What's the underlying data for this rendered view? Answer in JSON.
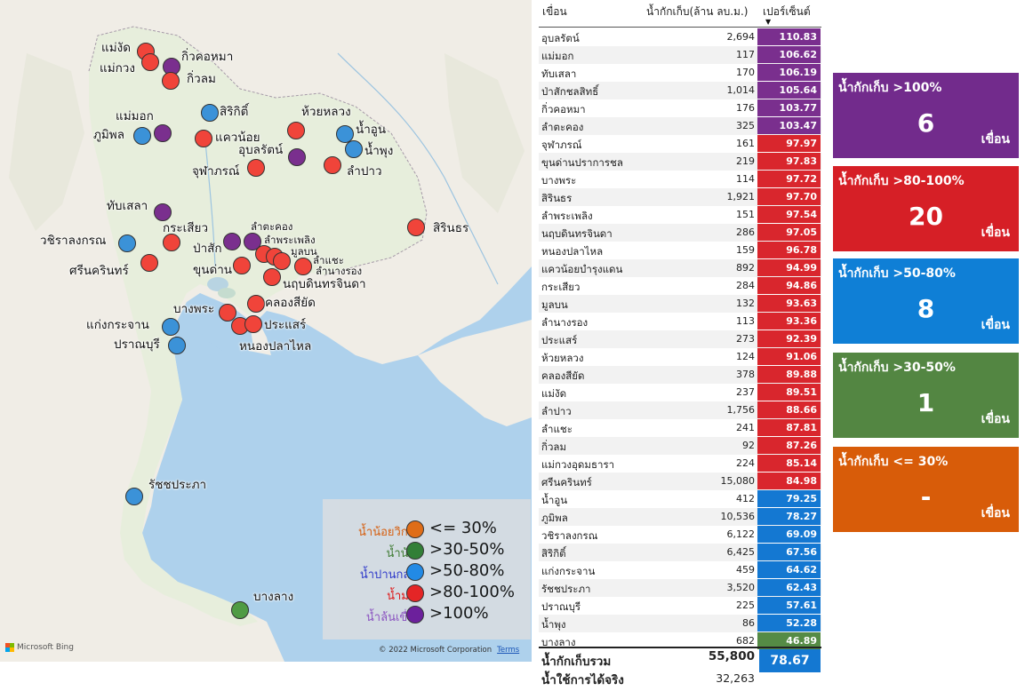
{
  "map": {
    "dams": [
      {
        "label": "แม่งัด",
        "color": "red"
      },
      {
        "label": "แม่กวง",
        "color": "red"
      },
      {
        "label": "กิ่วคอหมา",
        "color": "purple"
      },
      {
        "label": "กิ่วลม",
        "color": "red"
      },
      {
        "label": "สิริกิติ์",
        "color": "blue"
      },
      {
        "label": "ห้วยหลวง",
        "color": "red"
      },
      {
        "label": "แม่มอก",
        "color": "purple"
      },
      {
        "label": "ภูมิพล",
        "color": "blue"
      },
      {
        "label": "แควน้อย",
        "color": "red"
      },
      {
        "label": "น้ำอูน",
        "color": "blue"
      },
      {
        "label": "น้ำพุง",
        "color": "blue"
      },
      {
        "label": "อุบลรัตน์",
        "color": "purple"
      },
      {
        "label": "จุฬาภรณ์",
        "color": "red"
      },
      {
        "label": "ลำปาว",
        "color": "red"
      },
      {
        "label": "ทับเสลา",
        "color": "purple"
      },
      {
        "label": "สิรินธร",
        "color": "red"
      },
      {
        "label": "กระเสียว",
        "color": "red"
      },
      {
        "label": "วชิราลงกรณ",
        "color": "blue"
      },
      {
        "label": "ลำตะคอง",
        "color": "purple"
      },
      {
        "label": "ลำพระเพลิง",
        "color": "red"
      },
      {
        "label": "ป่าสัก",
        "color": "purple"
      },
      {
        "label": "มูลบน",
        "color": "red"
      },
      {
        "label": "ลำแชะ",
        "color": "red"
      },
      {
        "label": "ศรีนครินทร์",
        "color": "red"
      },
      {
        "label": "ขุนด่าน",
        "color": "red"
      },
      {
        "label": "ลำนางรอง",
        "color": "red"
      },
      {
        "label": "นฤบดินทรจินดา",
        "color": "red"
      },
      {
        "label": "บางพระ",
        "color": "red"
      },
      {
        "label": "คลองสียัด",
        "color": "red"
      },
      {
        "label": "แก่งกระจาน",
        "color": "blue"
      },
      {
        "label": "ประแสร์",
        "color": "red"
      },
      {
        "label": "ปราณบุรี",
        "color": "blue"
      },
      {
        "label": "หนองปลาไหล",
        "color": "red"
      },
      {
        "label": "รัชชประภา",
        "color": "blue"
      },
      {
        "label": "บางลาง",
        "color": "green"
      }
    ],
    "legend": [
      {
        "name": "น้ำน้อยวิกฤต",
        "range": "<= 30%",
        "color": "#e16a12",
        "text_color": "#d85c09"
      },
      {
        "name": "น้ำน้อย",
        "range": ">30-50%",
        "color": "#2e7d32",
        "text_color": "#3d7a2f"
      },
      {
        "name": "น้ำปานกลาง",
        "range": ">50-80%",
        "color": "#1e88e5",
        "text_color": "#2b35c9"
      },
      {
        "name": "น้ำมาก",
        "range": ">80-100%",
        "color": "#e62020",
        "text_color": "#e01414"
      },
      {
        "name": "น้ำล้นเขื่อน",
        "range": ">100%",
        "color": "#6a1b9a",
        "text_color": "#8a4fbf"
      }
    ],
    "attribution": "Microsoft Bing",
    "copyright": "© 2022 Microsoft Corporation",
    "terms": "Terms"
  },
  "table": {
    "headers": {
      "name": "เขื่อน",
      "storage": "น้ำกักเก็บ(ล้าน ลบ.ม.)",
      "percent": "เปอร์เซ็นต์"
    },
    "rows": [
      {
        "name": "อุบลรัตน์",
        "value": "2,694",
        "percent": "110.83",
        "color": "purple"
      },
      {
        "name": "แม่มอก",
        "value": "117",
        "percent": "106.62",
        "color": "purple"
      },
      {
        "name": "ทับเสลา",
        "value": "170",
        "percent": "106.19",
        "color": "purple"
      },
      {
        "name": "ป่าสักชลสิทธิ์",
        "value": "1,014",
        "percent": "105.64",
        "color": "purple"
      },
      {
        "name": "กิ่วคอหมา",
        "value": "176",
        "percent": "103.77",
        "color": "purple"
      },
      {
        "name": "ลำตะคอง",
        "value": "325",
        "percent": "103.47",
        "color": "purple"
      },
      {
        "name": "จุฬาภรณ์",
        "value": "161",
        "percent": "97.97",
        "color": "red"
      },
      {
        "name": "ขุนด่านปราการชล",
        "value": "219",
        "percent": "97.83",
        "color": "red"
      },
      {
        "name": "บางพระ",
        "value": "114",
        "percent": "97.72",
        "color": "red"
      },
      {
        "name": "สิรินธร",
        "value": "1,921",
        "percent": "97.70",
        "color": "red"
      },
      {
        "name": "ลำพระเพลิง",
        "value": "151",
        "percent": "97.54",
        "color": "red"
      },
      {
        "name": "นฤบดินทรจินดา",
        "value": "286",
        "percent": "97.05",
        "color": "red"
      },
      {
        "name": "หนองปลาไหล",
        "value": "159",
        "percent": "96.78",
        "color": "red"
      },
      {
        "name": "แควน้อยบำรุงแดน",
        "value": "892",
        "percent": "94.99",
        "color": "red"
      },
      {
        "name": "กระเสียว",
        "value": "284",
        "percent": "94.86",
        "color": "red"
      },
      {
        "name": "มูลบน",
        "value": "132",
        "percent": "93.63",
        "color": "red"
      },
      {
        "name": "ลำนางรอง",
        "value": "113",
        "percent": "93.36",
        "color": "red"
      },
      {
        "name": "ประแสร์",
        "value": "273",
        "percent": "92.39",
        "color": "red"
      },
      {
        "name": "ห้วยหลวง",
        "value": "124",
        "percent": "91.06",
        "color": "red"
      },
      {
        "name": "คลองสียัด",
        "value": "378",
        "percent": "89.88",
        "color": "red"
      },
      {
        "name": "แม่งัด",
        "value": "237",
        "percent": "89.51",
        "color": "red"
      },
      {
        "name": "ลำปาว",
        "value": "1,756",
        "percent": "88.66",
        "color": "red"
      },
      {
        "name": "ลำแชะ",
        "value": "241",
        "percent": "87.81",
        "color": "red"
      },
      {
        "name": "กิ่วลม",
        "value": "92",
        "percent": "87.26",
        "color": "red"
      },
      {
        "name": "แม่กวงอุดมธารา",
        "value": "224",
        "percent": "85.14",
        "color": "red"
      },
      {
        "name": "ศรีนครินทร์",
        "value": "15,080",
        "percent": "84.98",
        "color": "red"
      },
      {
        "name": "น้ำอูน",
        "value": "412",
        "percent": "79.25",
        "color": "blue"
      },
      {
        "name": "ภูมิพล",
        "value": "10,536",
        "percent": "78.27",
        "color": "blue"
      },
      {
        "name": "วชิราลงกรณ",
        "value": "6,122",
        "percent": "69.09",
        "color": "blue"
      },
      {
        "name": "สิริกิติ์",
        "value": "6,425",
        "percent": "67.56",
        "color": "blue"
      },
      {
        "name": "แก่งกระจาน",
        "value": "459",
        "percent": "64.62",
        "color": "blue"
      },
      {
        "name": "รัชชประภา",
        "value": "3,520",
        "percent": "62.43",
        "color": "blue"
      },
      {
        "name": "ปราณบุรี",
        "value": "225",
        "percent": "57.61",
        "color": "blue"
      },
      {
        "name": "น้ำพุง",
        "value": "86",
        "percent": "52.28",
        "color": "blue"
      },
      {
        "name": "บางลาง",
        "value": "682",
        "percent": "46.89",
        "color": "green"
      }
    ],
    "total": {
      "label": "น้ำกักเก็บรวม",
      "value": "55,800",
      "percent": "78.67"
    },
    "usable": {
      "label": "น้ำใช้การได้จริง",
      "value": "32,263"
    }
  },
  "cards": [
    {
      "title": "น้ำกักเก็บ >100%",
      "count": "6",
      "unit": "เขื่อน",
      "color": "c-purple"
    },
    {
      "title": "น้ำกักเก็บ >80-100%",
      "count": "20",
      "unit": "เขื่อน",
      "color": "c-red"
    },
    {
      "title": "น้ำกักเก็บ >50-80%",
      "count": "8",
      "unit": "เขื่อน",
      "color": "c-blue"
    },
    {
      "title": "น้ำกักเก็บ >30-50%",
      "count": "1",
      "unit": "เขื่อน",
      "color": "c-green"
    },
    {
      "title": "น้ำกักเก็บ <= 30%",
      "count": "-",
      "unit": "เขื่อน",
      "color": "c-orange"
    }
  ]
}
